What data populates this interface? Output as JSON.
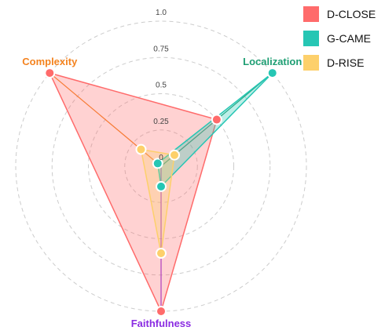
{
  "chart_data": {
    "type": "radar",
    "title": "",
    "axes": [
      {
        "name": "Localization",
        "color": "#1e9e73"
      },
      {
        "name": "Faithfulness",
        "color": "#8a2be2"
      },
      {
        "name": "Complexity",
        "color": "#f4831f"
      }
    ],
    "ticks": [
      "0",
      "0.25",
      "0.5",
      "0.75",
      "1.0"
    ],
    "range": [
      0,
      1
    ],
    "grid": "dashed-circles",
    "legend_position": "top-right",
    "series": [
      {
        "name": "D-CLOSE",
        "color": "#ff6b6b",
        "values": [
          0.5,
          1.0,
          1.0
        ]
      },
      {
        "name": "G-CAME",
        "color": "#26c6b4",
        "values": [
          1.0,
          0.14,
          0.03
        ]
      },
      {
        "name": "D-RISE",
        "color": "#fdd06b",
        "values": [
          0.12,
          0.6,
          0.18
        ]
      }
    ]
  }
}
